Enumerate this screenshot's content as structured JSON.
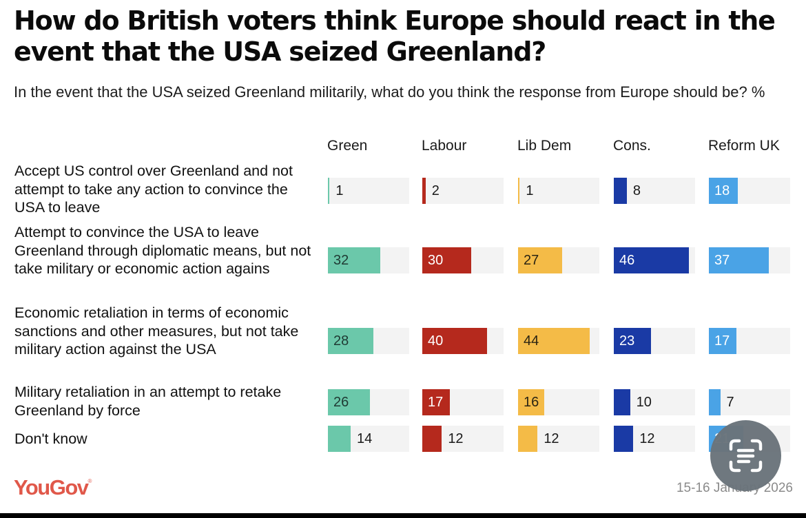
{
  "chart_data": {
    "type": "bar",
    "orientation": "horizontal-small-multiples",
    "title": "How do British voters think Europe should react in the event that the USA seized Greenland?",
    "subtitle": "In the event that the USA seized Greenland militarily, what do you think the response from Europe should be? %",
    "xlabel": "",
    "ylabel": "",
    "xlim": [
      0,
      50
    ],
    "unit": "%",
    "categories": [
      "Accept US control over Greenland and not attempt to take any action to convince the USA to leave",
      "Attempt to convince the USA to leave Greenland through diplomatic means, but not take military or economic action agains",
      "Economic retaliation in terms of economic sanctions and other measures, but not take military action against the USA",
      "Military retaliation in an attempt to retake Greenland by force",
      "Don't know"
    ],
    "series": [
      {
        "name": "Green",
        "color": "#6bc8aa",
        "label_color": "#1f3a33",
        "values": [
          1,
          32,
          28,
          26,
          14
        ]
      },
      {
        "name": "Labour",
        "color": "#b5291d",
        "label_color": "#ffffff",
        "values": [
          2,
          30,
          40,
          17,
          12
        ]
      },
      {
        "name": "Lib Dem",
        "color": "#f4bb47",
        "label_color": "#2a2413",
        "values": [
          1,
          27,
          44,
          16,
          12
        ]
      },
      {
        "name": "Cons.",
        "color": "#1a3aa5",
        "label_color": "#ffffff",
        "values": [
          8,
          46,
          23,
          10,
          12
        ]
      },
      {
        "name": "Reform UK",
        "color": "#4aa3e6",
        "label_color": "#ffffff",
        "values": [
          18,
          37,
          17,
          7,
          21
        ]
      }
    ],
    "legend": "column-headers-top",
    "grid": false,
    "notes": "Reform UK 'Don't know' value is obscured by an overlay button; estimated from row totals."
  },
  "footer": {
    "brand": "YouGov",
    "brand_mark": "®",
    "date": "15-16 January 2026"
  },
  "overlay": {
    "icon": "live-text-scan-icon"
  }
}
